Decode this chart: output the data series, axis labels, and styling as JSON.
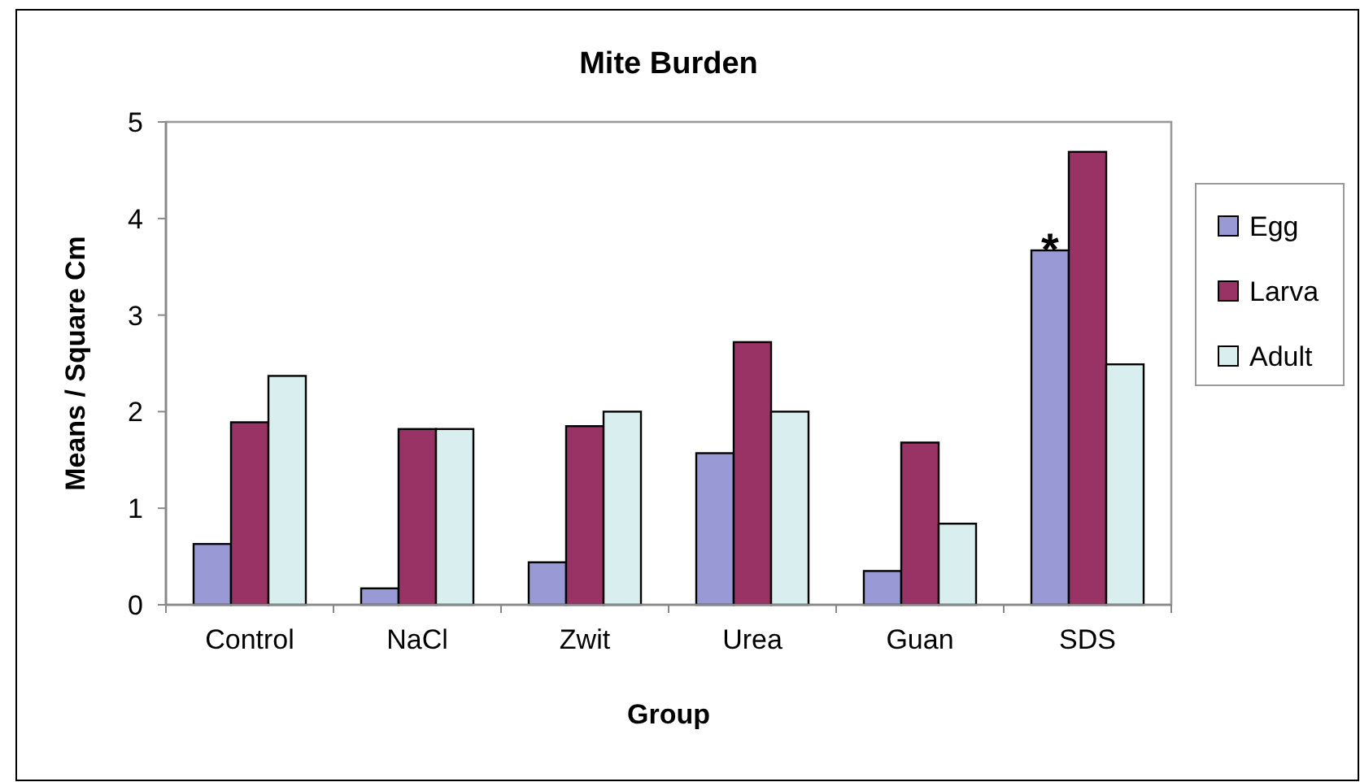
{
  "chart_data": {
    "type": "bar",
    "title": "Mite Burden",
    "xlabel": "Group",
    "ylabel": "Means / Square Cm",
    "categories": [
      "Control",
      "NaCl",
      "Zwit",
      "Urea",
      "Guan",
      "SDS"
    ],
    "series": [
      {
        "name": "Egg",
        "color": "#9999d6",
        "values": [
          0.63,
          0.17,
          0.44,
          1.57,
          0.35,
          3.67
        ]
      },
      {
        "name": "Larva",
        "color": "#993366",
        "values": [
          1.89,
          1.82,
          1.85,
          2.72,
          1.68,
          4.69
        ]
      },
      {
        "name": "Adult",
        "color": "#d9eeee",
        "values": [
          2.37,
          1.82,
          2.0,
          2.0,
          0.84,
          2.49
        ]
      }
    ],
    "ylim": [
      0,
      5
    ],
    "yticks": [
      0,
      1,
      2,
      3,
      4,
      5
    ],
    "grid": false,
    "legend": "right",
    "annotations": [
      "*"
    ]
  }
}
